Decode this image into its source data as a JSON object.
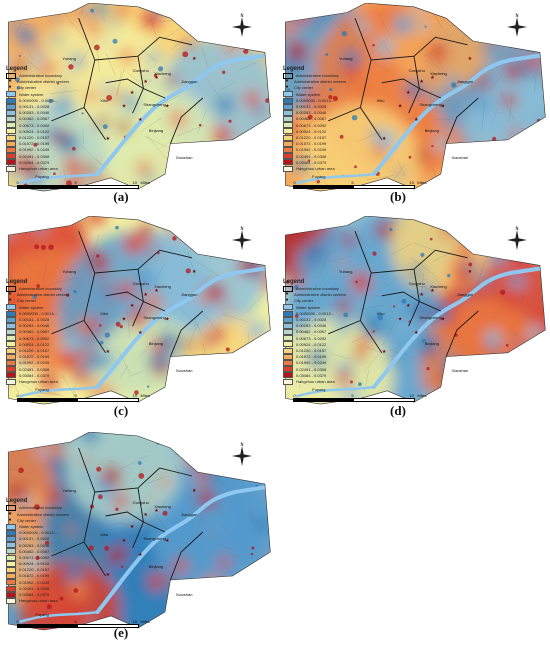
{
  "panels": [
    {
      "id": "a",
      "caption": "(a)",
      "theme": "mixed",
      "legend_classes": [
        "0.0000000 - 0.0013...",
        "0.00131 - 0.0028",
        "0.00283 - 0.0046",
        "0.00462 - 0.0067",
        "0.00673 - 0.0092",
        "0.00924 - 0.0122",
        "0.01220 - 0.0157",
        "0.01572 - 0.0199",
        "0.01992 - 0.0249",
        "0.02491 - 0.0308",
        "0.03084 - 0.0379"
      ]
    },
    {
      "id": "b",
      "caption": "(b)",
      "theme": "warm",
      "legend_classes": [
        "0.0000000 - 0.0013...",
        "0.00131 - 0.0028",
        "0.00283 - 0.0046",
        "0.00462 - 0.0067",
        "0.00673 - 0.0092",
        "0.00924 - 0.0122",
        "0.01220 - 0.0157",
        "0.01572 - 0.0199",
        "0.01992 - 0.0249",
        "0.02491 - 0.0308",
        "0.03084 - 0.0379"
      ]
    },
    {
      "id": "c",
      "caption": "(c)",
      "theme": "mixed-west",
      "legend_classes": [
        "0.0000000 - 0.0013...",
        "0.00131 - 0.0028",
        "0.00283 - 0.0046",
        "0.00462 - 0.0067",
        "0.00673 - 0.0092",
        "0.00924 - 0.0122",
        "0.01220 - 0.0157",
        "0.01572 - 0.0199",
        "0.01992 - 0.0249",
        "0.02491 - 0.0308",
        "0.03084 - 0.0379"
      ]
    },
    {
      "id": "d",
      "caption": "(d)",
      "theme": "cool-east",
      "legend_classes": [
        "0.0000000 - 0.0013...",
        "0.00131 - 0.0028",
        "0.00283 - 0.0046",
        "0.00462 - 0.0067",
        "0.00673 - 0.0092",
        "0.00924 - 0.0122",
        "0.01220 - 0.0157",
        "0.01572 - 0.0199",
        "0.01992 - 0.0249",
        "0.02491 - 0.0308",
        "0.03084 - 0.0379"
      ]
    },
    {
      "id": "e",
      "caption": "(e)",
      "theme": "cool",
      "legend_classes": [
        "0.0000000 - 0.0013...",
        "0.00131 - 0.0028",
        "0.00283 - 0.0046",
        "0.00462 - 0.0067",
        "0.00673 - 0.0092",
        "0.00924 - 0.0122",
        "0.01220 - 0.0157",
        "0.01572 - 0.0199",
        "0.01992 - 0.0249",
        "0.02491 - 0.0308",
        "0.03084 - 0.0379"
      ]
    }
  ],
  "legend": {
    "title": "Legend",
    "admin_boundary": "Administrative boundary",
    "district_centers": "Administrative district centers",
    "city_center": "City center",
    "water_system": "Water system",
    "urban_area": "Hangzhou urban area"
  },
  "scale": {
    "zero": "0",
    "mid": "5",
    "max": "10",
    "unit": "Miles"
  },
  "compass": {
    "north": "N"
  },
  "places": [
    "Gongshu",
    "Xiacheng",
    "Jianggan",
    "Xihu",
    "Shangcheng",
    "Binjiang",
    "Xiaoshan",
    "Yuhang",
    "Fuyang"
  ],
  "colors": {
    "ramp": [
      "#2c7bb6",
      "#5b9fcf",
      "#8dbfd9",
      "#b6d7c9",
      "#dcebb0",
      "#f3f0a0",
      "#f8d57a",
      "#f5a95a",
      "#ec7a40",
      "#dc3d2a",
      "#b5141b"
    ],
    "water": "#8ec8f0",
    "boundary": "#1a1a1a"
  }
}
